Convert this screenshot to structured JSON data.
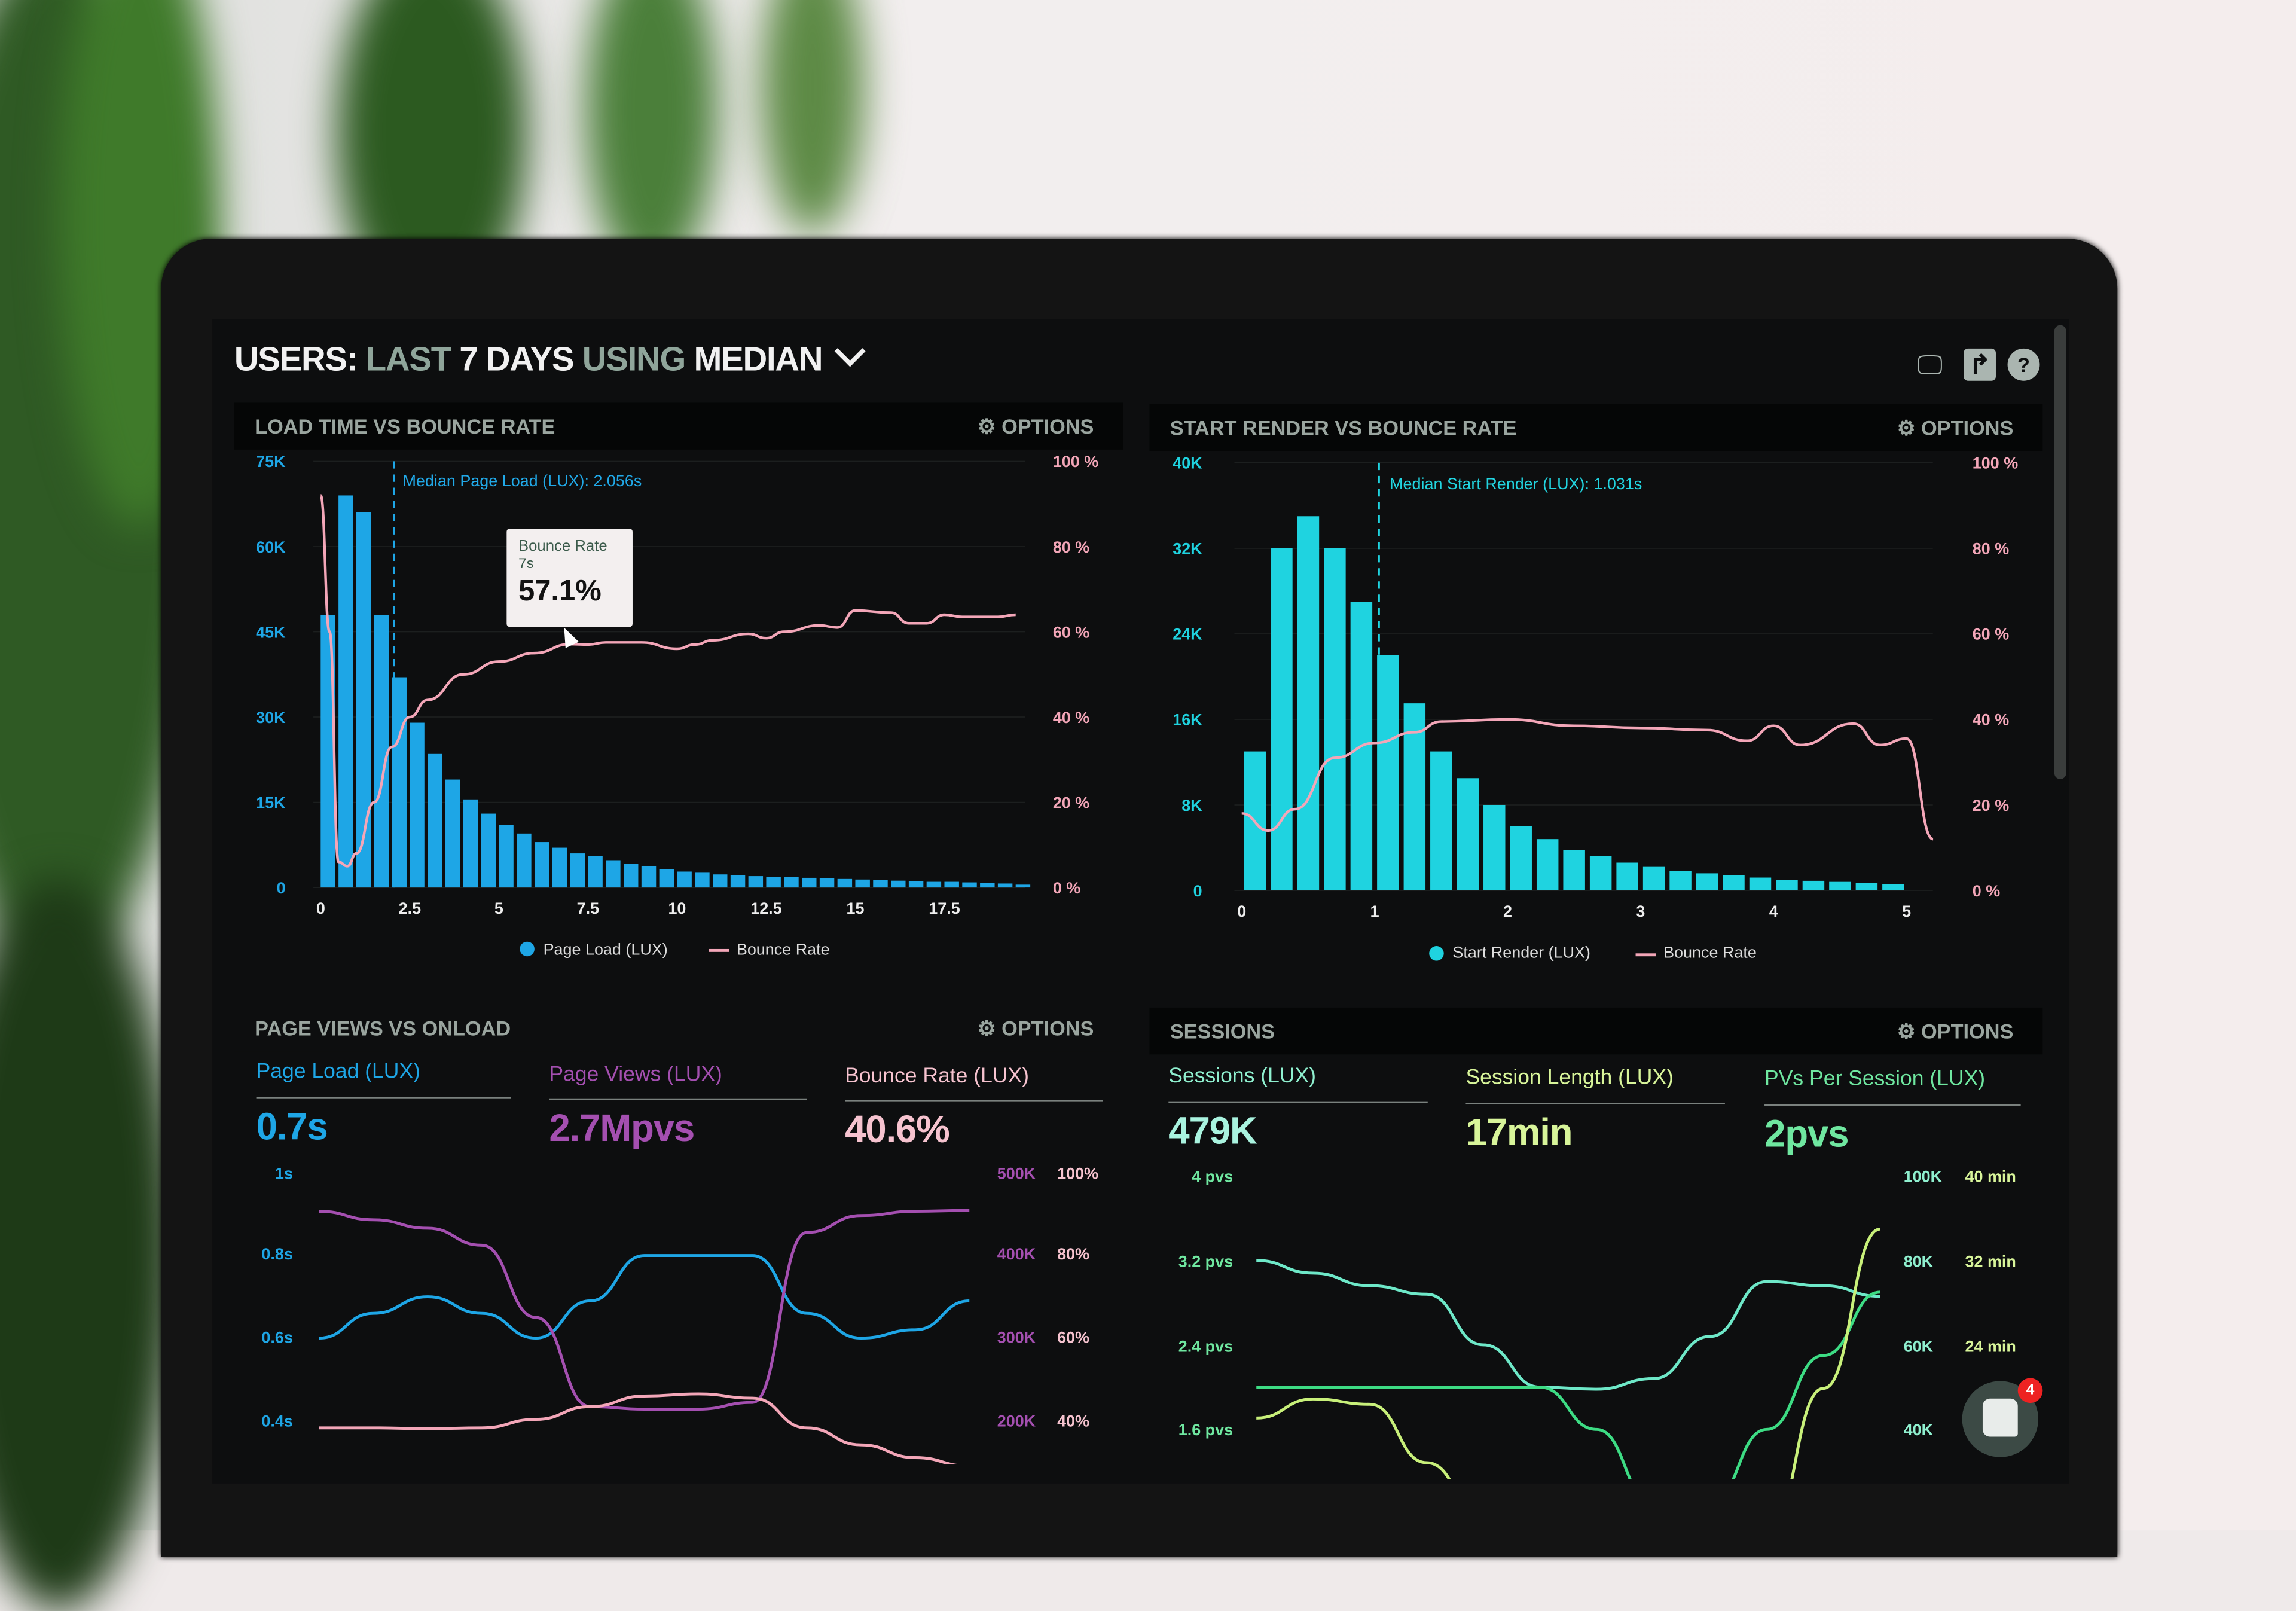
{
  "header": {
    "title_users": "USERS:",
    "title_last": "LAST",
    "title_days": "7 DAYS",
    "title_using": "USING",
    "title_median": "MEDIAN",
    "icons": [
      "desktop-icon",
      "share-icon",
      "help-icon"
    ]
  },
  "options_label": "OPTIONS",
  "colors": {
    "blue": "#1ea6e6",
    "cyan": "#1fd3e0",
    "pink": "#f3a6b8",
    "purple": "#a44fb0",
    "teal": "#6ee8c8",
    "green": "#3ddc84",
    "lime": "#c8f07a"
  },
  "panels": {
    "load_time": {
      "title": "LOAD TIME VS BOUNCE RATE",
      "median_label": "Median Page Load (LUX): 2.056s",
      "legend_bar": "Page Load (LUX)",
      "legend_line": "Bounce Rate",
      "tooltip": {
        "label": "Bounce Rate",
        "x": "7s",
        "value": "57.1%"
      }
    },
    "start_render": {
      "title": "START RENDER VS BOUNCE RATE",
      "median_label": "Median Start Render (LUX): 1.031s",
      "legend_bar": "Start Render (LUX)",
      "legend_line": "Bounce Rate"
    },
    "page_views": {
      "title": "PAGE VIEWS VS ONLOAD",
      "stats": [
        {
          "label": "Page Load (LUX)",
          "value": "0.7s"
        },
        {
          "label": "Page Views (LUX)",
          "value": "2.7Mpvs"
        },
        {
          "label": "Bounce Rate (LUX)",
          "value": "40.6%"
        }
      ]
    },
    "sessions": {
      "title": "SESSIONS",
      "stats": [
        {
          "label": "Sessions (LUX)",
          "value": "479K"
        },
        {
          "label": "Session Length (LUX)",
          "value": "17min"
        },
        {
          "label": "PVs Per Session (LUX)",
          "value": "2pvs"
        }
      ]
    }
  },
  "chat": {
    "icon": "chat-icon",
    "badge": "4"
  },
  "chart_data": [
    {
      "type": "bar",
      "id": "load_time",
      "x_ticks": [
        "0",
        "2.5",
        "5",
        "7.5",
        "10",
        "12.5",
        "15",
        "17.5"
      ],
      "y_left_ticks": [
        "0",
        "15K",
        "30K",
        "45K",
        "60K",
        "75K"
      ],
      "y_right_ticks": [
        "0 %",
        "20 %",
        "40 %",
        "60 %",
        "80 %",
        "100 %"
      ],
      "xlim": [
        0,
        20
      ],
      "ylim_left": [
        0,
        75000
      ],
      "ylim_right": [
        0,
        100
      ],
      "median": 2.056,
      "bin_width": 0.5,
      "bars": {
        "name": "Page Load (LUX)",
        "x_start": 0,
        "values": [
          48000,
          69000,
          66000,
          48000,
          37000,
          29000,
          23500,
          19000,
          15500,
          13000,
          11000,
          9500,
          8000,
          7000,
          6000,
          5500,
          4800,
          4200,
          3800,
          3200,
          2800,
          2600,
          2300,
          2200,
          2000,
          1900,
          1800,
          1700,
          1600,
          1500,
          1400,
          1300,
          1200,
          1100,
          1000,
          1000,
          900,
          800,
          700,
          500
        ]
      },
      "line": {
        "name": "Bounce Rate",
        "points": [
          [
            0,
            92
          ],
          [
            0.25,
            60
          ],
          [
            0.5,
            6
          ],
          [
            0.75,
            5
          ],
          [
            1,
            8
          ],
          [
            1.5,
            20
          ],
          [
            2,
            33
          ],
          [
            2.5,
            40
          ],
          [
            3,
            44
          ],
          [
            4,
            50
          ],
          [
            5,
            53
          ],
          [
            6,
            55
          ],
          [
            7,
            57.1
          ],
          [
            7.5,
            57
          ],
          [
            8,
            57.5
          ],
          [
            9,
            57.5
          ],
          [
            10,
            56
          ],
          [
            10.5,
            57
          ],
          [
            11,
            58
          ],
          [
            12,
            59.5
          ],
          [
            12.5,
            58.5
          ],
          [
            13,
            60
          ],
          [
            14,
            61.5
          ],
          [
            14.5,
            61
          ],
          [
            15,
            65
          ],
          [
            16,
            64.5
          ],
          [
            16.5,
            62
          ],
          [
            17,
            62
          ],
          [
            17.5,
            64
          ],
          [
            18,
            63.5
          ],
          [
            19,
            63.5
          ],
          [
            19.5,
            64
          ]
        ]
      }
    },
    {
      "type": "bar",
      "id": "start_render",
      "x_ticks": [
        "0",
        "1",
        "2",
        "3",
        "4",
        "5"
      ],
      "y_left_ticks": [
        "0",
        "8K",
        "16K",
        "24K",
        "32K",
        "40K"
      ],
      "y_right_ticks": [
        "0 %",
        "20 %",
        "40 %",
        "60 %",
        "80 %",
        "100 %"
      ],
      "xlim": [
        0,
        5.5
      ],
      "ylim_left": [
        0,
        40000
      ],
      "ylim_right": [
        0,
        100
      ],
      "median": 1.031,
      "bin_width": 0.2,
      "bars": {
        "name": "Start Render (LUX)",
        "x_start": 0.1,
        "values": [
          13000,
          32000,
          35000,
          32000,
          27000,
          22000,
          17500,
          13000,
          10500,
          8000,
          6000,
          4800,
          3800,
          3200,
          2600,
          2200,
          1800,
          1600,
          1400,
          1200,
          1000,
          900,
          800,
          700,
          600
        ]
      },
      "line": {
        "name": "Bounce Rate",
        "points": [
          [
            0,
            18
          ],
          [
            0.2,
            14
          ],
          [
            0.4,
            19
          ],
          [
            0.7,
            31
          ],
          [
            1,
            34.5
          ],
          [
            1.3,
            37
          ],
          [
            1.5,
            39.5
          ],
          [
            2,
            40
          ],
          [
            2.5,
            38.5
          ],
          [
            3,
            38
          ],
          [
            3.5,
            37.5
          ],
          [
            3.8,
            35
          ],
          [
            4,
            38.5
          ],
          [
            4.2,
            34
          ],
          [
            4.6,
            39
          ],
          [
            4.8,
            34
          ],
          [
            5,
            35.5
          ],
          [
            5.2,
            12
          ]
        ]
      }
    },
    {
      "type": "line",
      "id": "page_views",
      "y_left_ticks": [
        "1s",
        "0.8s",
        "0.6s",
        "0.4s"
      ],
      "y_mid_ticks": [
        "500K",
        "400K",
        "300K",
        "200K"
      ],
      "y_right_ticks": [
        "100%",
        "80%",
        "60%",
        "40%"
      ],
      "series": [
        {
          "name": "Page Load (LUX)",
          "axis": "s",
          "values": [
            0.6,
            0.66,
            0.7,
            0.66,
            0.6,
            0.69,
            0.8,
            0.8,
            0.8,
            0.66,
            0.6,
            0.62,
            0.69
          ]
        },
        {
          "name": "Page Views (LUX)",
          "axis": "K",
          "values": [
            455,
            445,
            435,
            415,
            330,
            225,
            222,
            222,
            230,
            430,
            450,
            455,
            456
          ]
        },
        {
          "name": "Bounce Rate (LUX)",
          "axis": "%",
          "values": [
            40,
            40,
            39.8,
            40,
            42,
            45,
            47.5,
            48,
            47,
            40,
            36,
            33,
            31
          ]
        }
      ]
    },
    {
      "type": "line",
      "id": "sessions",
      "y_left_ticks": [
        "4 pvs",
        "3.2 pvs",
        "2.4 pvs",
        "1.6 pvs"
      ],
      "y_mid_ticks": [
        "100K",
        "80K",
        "60K",
        "40K"
      ],
      "y_right_ticks": [
        "40 min",
        "32 min",
        "24 min"
      ],
      "series": [
        {
          "name": "Sessions (LUX)",
          "axis": "K",
          "values": [
            80,
            77,
            74,
            72,
            60,
            50,
            49.5,
            52,
            62,
            75,
            74,
            71.5
          ]
        },
        {
          "name": "PVs Per Session (LUX)",
          "axis": "pvs",
          "values": [
            2,
            2,
            2,
            2,
            2,
            2,
            1.6,
            0.9,
            0.9,
            1.6,
            2.3,
            2.9
          ]
        },
        {
          "name": "Session Length (LUX)",
          "axis": "min",
          "values": [
            17.2,
            19,
            18.5,
            13,
            8,
            5,
            5,
            5,
            5,
            6,
            20,
            35
          ]
        }
      ]
    }
  ]
}
